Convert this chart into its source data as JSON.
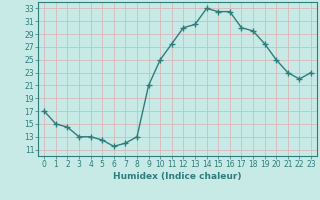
{
  "x": [
    0,
    1,
    2,
    3,
    4,
    5,
    6,
    7,
    8,
    9,
    10,
    11,
    12,
    13,
    14,
    15,
    16,
    17,
    18,
    19,
    20,
    21,
    22,
    23
  ],
  "y": [
    17,
    15,
    14.5,
    13,
    13,
    12.5,
    11.5,
    12,
    13,
    21,
    25,
    27.5,
    30,
    30.5,
    33,
    32.5,
    32.5,
    30,
    29.5,
    27.5,
    25,
    23,
    22,
    23
  ],
  "line_color": "#2e7d7d",
  "marker": "+",
  "marker_size": 4,
  "background_color": "#c8eae6",
  "grid_color": "#d8b8b8",
  "xlabel": "Humidex (Indice chaleur)",
  "ylim": [
    10,
    34
  ],
  "xlim": [
    -0.5,
    23.5
  ],
  "yticks": [
    11,
    13,
    15,
    17,
    19,
    21,
    23,
    25,
    27,
    29,
    31,
    33
  ],
  "xticks": [
    0,
    1,
    2,
    3,
    4,
    5,
    6,
    7,
    8,
    9,
    10,
    11,
    12,
    13,
    14,
    15,
    16,
    17,
    18,
    19,
    20,
    21,
    22,
    23
  ],
  "tick_color": "#2e7d7d",
  "label_fontsize": 6.5,
  "tick_fontsize": 5.5,
  "linewidth": 1.0,
  "marker_color": "#2e7d7d"
}
